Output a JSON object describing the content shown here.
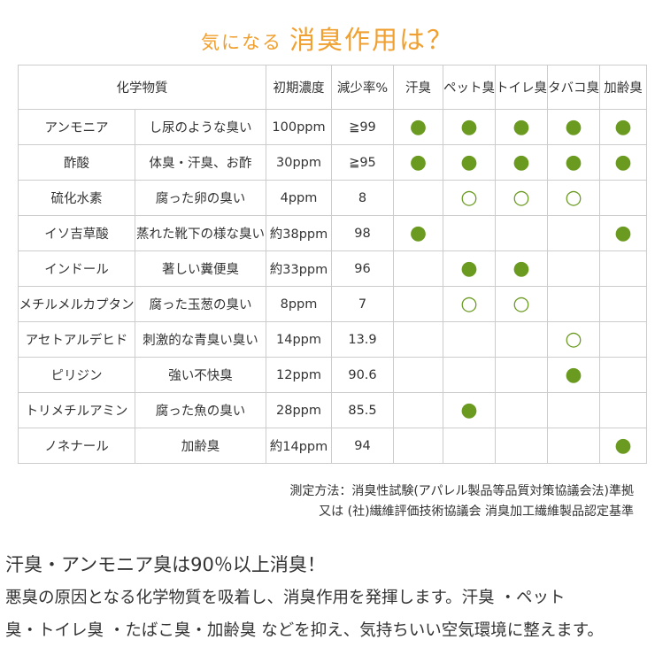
{
  "title": {
    "lead": "気になる",
    "main": "消臭作用は？"
  },
  "table": {
    "header": [
      "化学物質",
      "初期濃度",
      "減少率%",
      "汗臭",
      "ペット臭",
      "トイレ臭",
      "タバコ臭",
      "加齢臭"
    ],
    "rows": [
      [
        "アンモニア",
        "し尿のような臭い",
        "100ppm",
        "≧99",
        "●",
        "●",
        "●",
        "●",
        "●"
      ],
      [
        "酢酸",
        "体臭・汗臭、お酢",
        "30ppm",
        "≧95",
        "●",
        "●",
        "●",
        "●",
        "●"
      ],
      [
        "硫化水素",
        "腐った卵の臭い",
        "4ppm",
        "8",
        null,
        "○",
        "○",
        "○",
        null
      ],
      [
        "イソ吉草酸",
        "蒸れた靴下の様な臭い",
        "約38ppm",
        "98",
        "●",
        null,
        null,
        null,
        "●"
      ],
      [
        "インドール",
        "著しい糞便臭",
        "約33ppm",
        "96",
        null,
        "●",
        "●",
        null,
        null
      ],
      [
        "メチルメルカプタン",
        "腐った玉葱の臭い",
        "8ppm",
        "7",
        null,
        "○",
        "○",
        null,
        null
      ],
      [
        "アセトアルデヒド",
        "刺激的な青臭い臭い",
        "14ppm",
        "13.9",
        null,
        null,
        null,
        "○",
        null
      ],
      [
        "ピリジン",
        "強い不快臭",
        "12ppm",
        "90.6",
        null,
        null,
        null,
        "●",
        null
      ],
      [
        "トリメチルアミン",
        "腐った魚の臭い",
        "28ppm",
        "85.5",
        null,
        "●",
        null,
        null,
        null
      ],
      [
        "ノネナール",
        "加齢臭",
        "約14ppm",
        "94",
        null,
        null,
        null,
        null,
        "●"
      ]
    ]
  },
  "notes": [
    "測定方法：消臭性試験(アパレル製品等品質対策協議会法)準拠",
    "又は (社)繊維評価技術協議会 消臭加工繊維製品認定基準"
  ],
  "heading": "汗臭・アンモニア臭は90％以上消臭！",
  "paragraph": [
    "悪臭の原因となる化学物質を吸着し、消臭作用を発揮します。汗臭 ・ペット",
    "臭・トイレ臭 ・たばこ臭・加齢臭 などを抑え、気持ちいい空気環境に整えます。"
  ]
}
